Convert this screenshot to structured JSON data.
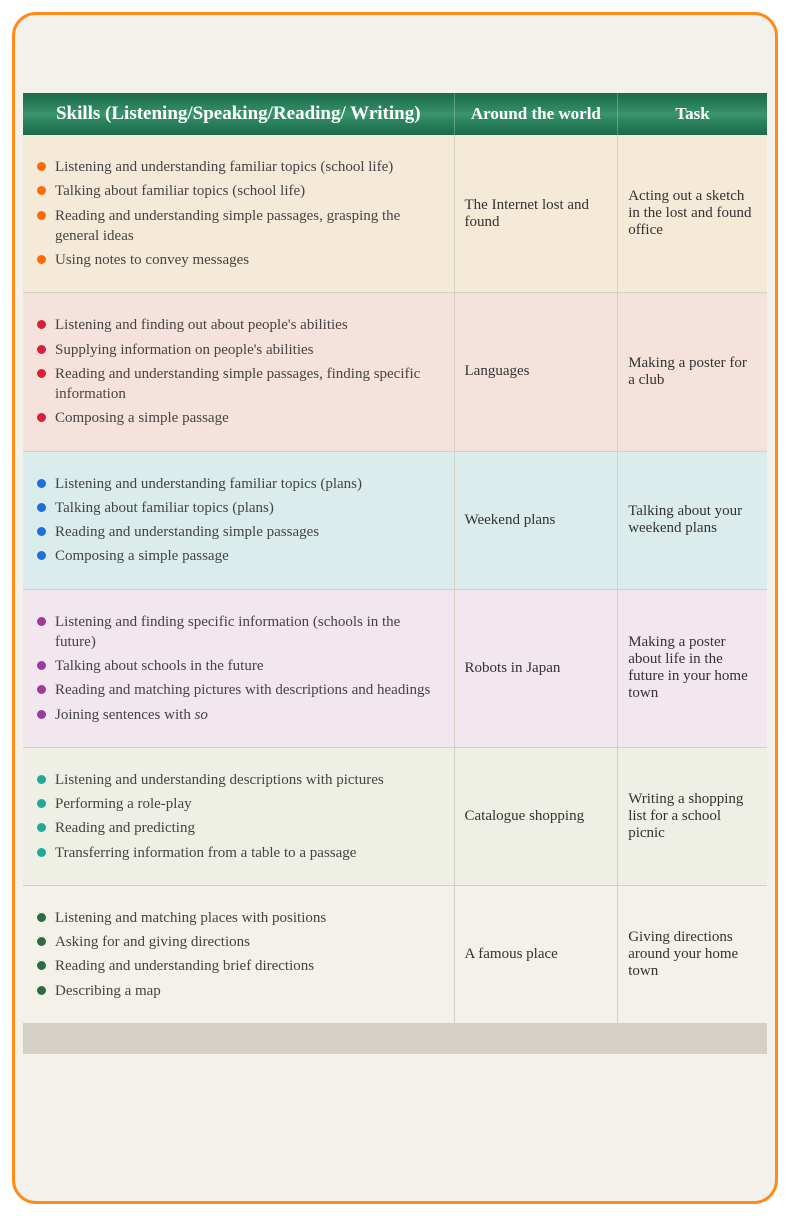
{
  "columns": {
    "skills": "Skills (Listening/Speaking/Reading/ Writing)",
    "around": "Around the world",
    "task": "Task"
  },
  "rows": [
    {
      "bg": "#f5ead8",
      "bullet": "#ff6a00",
      "skills": [
        "Listening and understanding familiar topics (school life)",
        "Talking about familiar topics (school life)",
        "Reading and understanding simple passages, grasping the general ideas",
        "Using notes to convey messages"
      ],
      "around": "The Internet lost and found",
      "task": "Acting out a sketch in the lost and found office"
    },
    {
      "bg": "#f6e2dd",
      "bullet": "#d6203c",
      "skills": [
        "Listening and finding out about people's abilities",
        "Supplying information on people's abilities",
        "Reading and understanding simple passages, finding specific information",
        "Composing a simple passage"
      ],
      "around": "Languages",
      "task": "Making a poster for a club"
    },
    {
      "bg": "#daeceb",
      "bullet": "#1e6fd6",
      "skills": [
        "Listening and understanding familiar topics (plans)",
        "Talking about familiar topics (plans)",
        "Reading and understanding simple passages",
        "Composing a simple passage"
      ],
      "around": "Weekend plans",
      "task": "Talking about your weekend plans"
    },
    {
      "bg": "#f2e6ef",
      "bullet": "#9c3b9c",
      "skills": [
        "Listening and finding specific information (schools in the future)",
        "Talking about schools in the future",
        "Reading and matching pictures with descriptions and headings",
        "Joining sentences with so"
      ],
      "around": "Robots in Japan",
      "task": "Making a poster about life in the future in your home town"
    },
    {
      "bg": "#eef0e6",
      "bullet": "#1fa89c",
      "skills": [
        "Listening and understanding descriptions with pictures",
        "Performing a role-play",
        "Reading and predicting",
        "Transferring information from a table to a passage"
      ],
      "around": "Catalogue shopping",
      "task": "Writing a shopping list for a school picnic"
    },
    {
      "bg": "#f4f1ea",
      "bullet": "#2e6b3e",
      "skills": [
        "Listening and matching places with positions",
        "Asking for and giving directions",
        "Reading and understanding brief directions",
        "Describing a map"
      ],
      "around": "A famous place",
      "task": "Giving directions around your home town"
    }
  ],
  "italic_word": "so",
  "italic_row": 3,
  "italic_item": 3
}
